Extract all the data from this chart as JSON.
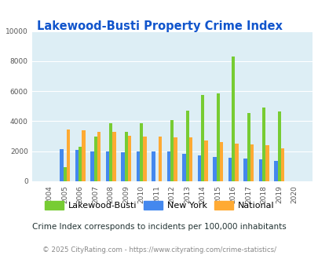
{
  "title": "Lakewood-Busti Property Crime Index",
  "years": [
    2004,
    2005,
    2006,
    2007,
    2008,
    2009,
    2010,
    2011,
    2012,
    2013,
    2014,
    2015,
    2016,
    2017,
    2018,
    2019,
    2020
  ],
  "lakewood": [
    0,
    950,
    2300,
    3000,
    3850,
    3300,
    3850,
    0,
    4050,
    4700,
    5750,
    5850,
    8300,
    4550,
    4900,
    4650,
    0
  ],
  "new_york": [
    0,
    2150,
    2100,
    2000,
    2000,
    1950,
    2000,
    2000,
    2000,
    1850,
    1750,
    1600,
    1550,
    1500,
    1450,
    1350,
    0
  ],
  "national": [
    0,
    3450,
    3400,
    3300,
    3300,
    3050,
    3000,
    3000,
    2950,
    2900,
    2700,
    2600,
    2500,
    2450,
    2400,
    2200,
    0
  ],
  "ylim": [
    0,
    10000
  ],
  "yticks": [
    0,
    2000,
    4000,
    6000,
    8000,
    10000
  ],
  "bar_width": 0.22,
  "color_lakewood": "#77cc33",
  "color_newyork": "#4488ee",
  "color_national": "#ffaa33",
  "bg_color": "#ddeef5",
  "grid_color": "#ffffff",
  "title_color": "#1155cc",
  "subtitle": "Crime Index corresponds to incidents per 100,000 inhabitants",
  "footer": "© 2025 CityRating.com - https://www.cityrating.com/crime-statistics/",
  "legend_labels": [
    "Lakewood-Busti",
    "New York",
    "National"
  ]
}
